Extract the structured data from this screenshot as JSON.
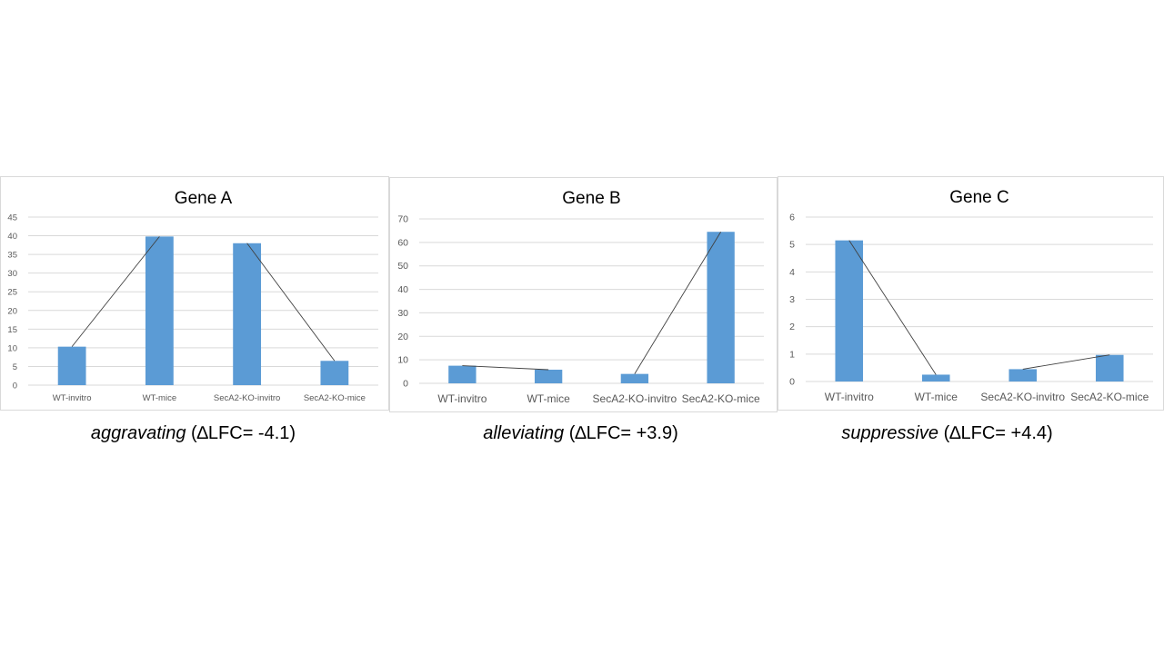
{
  "colors": {
    "bar": "#5b9bd5",
    "grid": "#d9d9d9",
    "axis_text": "#595959",
    "connector": "#404040"
  },
  "chart_data": [
    {
      "type": "bar",
      "title": "Gene A",
      "categories": [
        "WT-invitro",
        "WT-mice",
        "SecA2-KO-invitro",
        "SecA2-KO-mice"
      ],
      "values": [
        10.3,
        39.8,
        38,
        6.5
      ],
      "ylim": [
        0,
        45
      ],
      "yticks": [
        0,
        5,
        10,
        15,
        20,
        25,
        30,
        35,
        40,
        45
      ],
      "xlabel": "",
      "ylabel": "",
      "grid": true,
      "connectors": [
        [
          0,
          1
        ],
        [
          2,
          3
        ]
      ]
    },
    {
      "type": "bar",
      "title": "Gene B",
      "categories": [
        "WT-invitro",
        "WT-mice",
        "SecA2-KO-invitro",
        "SecA2-KO-mice"
      ],
      "values": [
        7.5,
        5.8,
        4,
        64.5
      ],
      "ylim": [
        0,
        70
      ],
      "yticks": [
        0,
        10,
        20,
        30,
        40,
        50,
        60,
        70
      ],
      "xlabel": "",
      "ylabel": "",
      "grid": true,
      "connectors": [
        [
          0,
          1
        ],
        [
          2,
          3
        ]
      ]
    },
    {
      "type": "bar",
      "title": "Gene C",
      "categories": [
        "WT-invitro",
        "WT-mice",
        "SecA2-KO-invitro",
        "SecA2-KO-mice"
      ],
      "values": [
        5.15,
        0.25,
        0.45,
        0.97
      ],
      "ylim": [
        0,
        6
      ],
      "yticks": [
        0,
        1,
        2,
        3,
        4,
        5,
        6
      ],
      "xlabel": "",
      "ylabel": "",
      "grid": true,
      "connectors": [
        [
          0,
          1
        ],
        [
          2,
          3
        ]
      ]
    }
  ],
  "captions": [
    {
      "word": "aggravating",
      "rest": " (∆LFC= -4.1)"
    },
    {
      "word": "alleviating",
      "rest": " (∆LFC= +3.9)"
    },
    {
      "word": "suppressive",
      "rest": " (∆LFC= +4.4)"
    }
  ]
}
